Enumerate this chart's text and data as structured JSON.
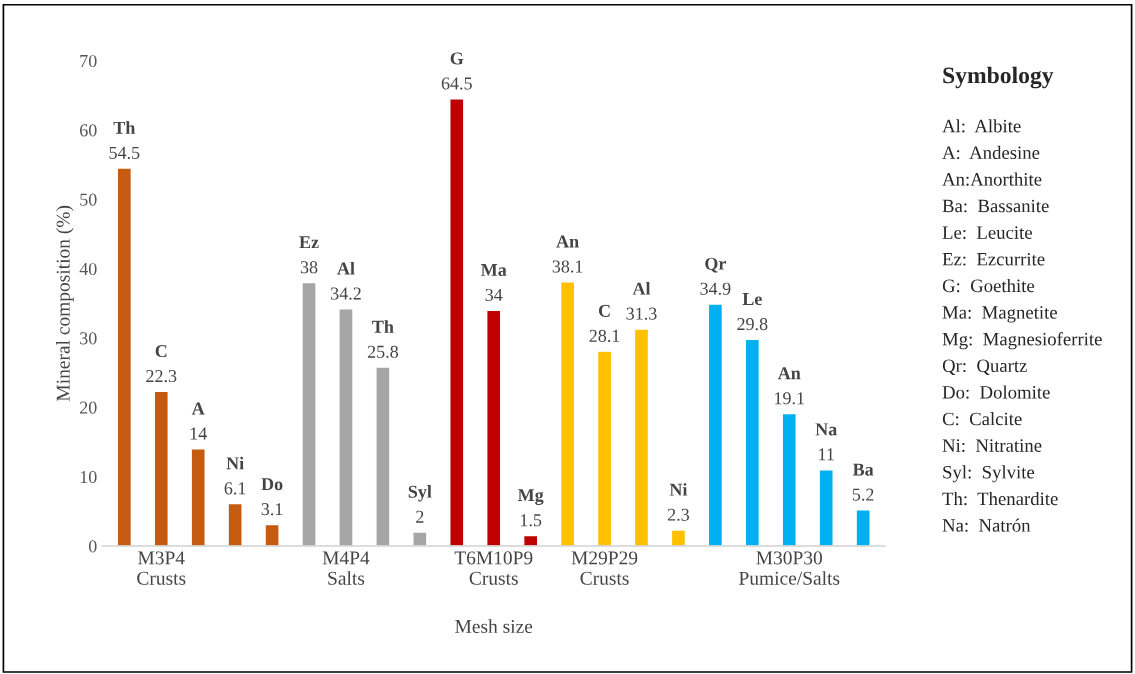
{
  "chart_data": {
    "type": "bar",
    "xlabel": "Mesh size",
    "ylabel": "Mineral composition (%)",
    "categories": [
      null,
      "M3P4\nCrusts",
      null,
      null,
      null,
      null,
      "M4P4\nSalts",
      null,
      null,
      null,
      "T6M10P9\nCrusts",
      null,
      null,
      "M29P29\nCrusts",
      null,
      null,
      null,
      null,
      "M30P30\nPumice/Salts",
      null,
      null
    ],
    "values": [
      54.5,
      22.3,
      14,
      6.1,
      3.1,
      38,
      34.2,
      25.8,
      2,
      64.5,
      34,
      1.5,
      38.1,
      28.1,
      31.3,
      2.3,
      34.9,
      29.8,
      19.1,
      11,
      5.2
    ],
    "value_labels": [
      "Th\n54.5",
      "C\n22.3",
      "A\n14",
      "Ni\n6.1",
      "Do\n3.1",
      "Ez\n38",
      "Al\n34.2",
      "Th\n25.8",
      "Syl\n2",
      "G\n64.5",
      "Ma\n34",
      "Mg\n1.5",
      "An\n38.1",
      "C\n28.1",
      "Al\n31.3",
      "Ni\n2.3",
      "Qr\n34.9",
      "Le\n29.8",
      "An\n19.1",
      "Na\n11",
      "Ba\n5.2"
    ],
    "colors": [
      "#c55a11",
      "#c55a11",
      "#c55a11",
      "#c55a11",
      "#c55a11",
      "#a5a5a5",
      "#a5a5a5",
      "#a5a5a5",
      "#a5a5a5",
      "#c00000",
      "#c00000",
      "#c00000",
      "#ffc000",
      "#ffc000",
      "#ffc000",
      "#ffc000",
      "#00b0f0",
      "#00b0f0",
      "#00b0f0",
      "#00b0f0",
      "#00b0f0"
    ],
    "ylim": [
      0,
      70
    ],
    "yticks": [
      0,
      10,
      20,
      30,
      40,
      50,
      60,
      70
    ],
    "grid": false,
    "annotations": [
      "Symbology",
      "Al:  Albite",
      "A:  Andesine",
      "An:Anorthite",
      "Ba:  Bassanite",
      "Le:  Leucite",
      "Ez:  Ezcurrite",
      "G:  Goethite",
      "Ma:  Magnetite",
      "Mg:  Magnesioferrite",
      "Qr:  Quartz",
      "Do:  Dolomite",
      "C:  Calcite",
      "Ni:  Nitratine",
      "Syl:  Sylvite",
      "Th:  Thenardite",
      "Na:  Natrón"
    ]
  }
}
